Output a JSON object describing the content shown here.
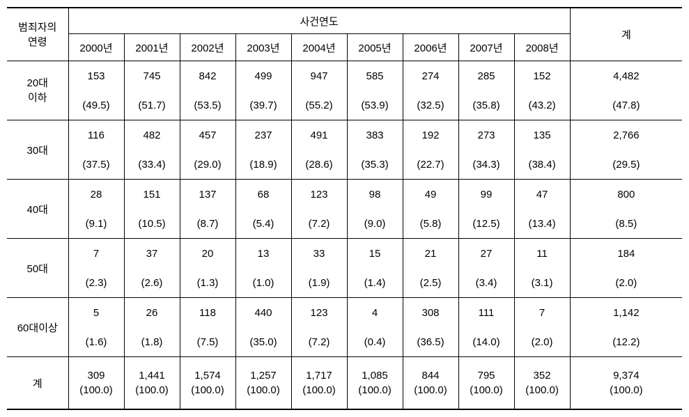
{
  "table": {
    "type": "table",
    "background_color": "#ffffff",
    "border_color": "#000000",
    "font_size": 15,
    "header": {
      "row_label": "범죄자의\n연령",
      "group_label": "사건연도",
      "total_label": "계",
      "years": [
        "2000년",
        "2001년",
        "2002년",
        "2003년",
        "2004년",
        "2005년",
        "2006년",
        "2007년",
        "2008년"
      ]
    },
    "rows": [
      {
        "label": "20대\n이하",
        "values": [
          "153",
          "745",
          "842",
          "499",
          "947",
          "585",
          "274",
          "285",
          "152"
        ],
        "total": "4,482",
        "pcts": [
          "(49.5)",
          "(51.7)",
          "(53.5)",
          "(39.7)",
          "(55.2)",
          "(53.9)",
          "(32.5)",
          "(35.8)",
          "(43.2)"
        ],
        "total_pct": "(47.8)"
      },
      {
        "label": "30대",
        "values": [
          "116",
          "482",
          "457",
          "237",
          "491",
          "383",
          "192",
          "273",
          "135"
        ],
        "total": "2,766",
        "pcts": [
          "(37.5)",
          "(33.4)",
          "(29.0)",
          "(18.9)",
          "(28.6)",
          "(35.3)",
          "(22.7)",
          "(34.3)",
          "(38.4)"
        ],
        "total_pct": "(29.5)"
      },
      {
        "label": "40대",
        "values": [
          "28",
          "151",
          "137",
          "68",
          "123",
          "98",
          "49",
          "99",
          "47"
        ],
        "total": "800",
        "pcts": [
          "(9.1)",
          "(10.5)",
          "(8.7)",
          "(5.4)",
          "(7.2)",
          "(9.0)",
          "(5.8)",
          "(12.5)",
          "(13.4)"
        ],
        "total_pct": "(8.5)"
      },
      {
        "label": "50대",
        "values": [
          "7",
          "37",
          "20",
          "13",
          "33",
          "15",
          "21",
          "27",
          "11"
        ],
        "total": "184",
        "pcts": [
          "(2.3)",
          "(2.6)",
          "(1.3)",
          "(1.0)",
          "(1.9)",
          "(1.4)",
          "(2.5)",
          "(3.4)",
          "(3.1)"
        ],
        "total_pct": "(2.0)"
      },
      {
        "label": "60대이상",
        "values": [
          "5",
          "26",
          "118",
          "440",
          "123",
          "4",
          "308",
          "111",
          "7"
        ],
        "total": "1,142",
        "pcts": [
          "(1.6)",
          "(1.8)",
          "(7.5)",
          "(35.0)",
          "(7.2)",
          "(0.4)",
          "(36.5)",
          "(14.0)",
          "(2.0)"
        ],
        "total_pct": "(12.2)"
      }
    ],
    "total_row": {
      "label": "계",
      "values": [
        "309",
        "1,441",
        "1,574",
        "1,257",
        "1,717",
        "1,085",
        "844",
        "795",
        "352"
      ],
      "total": "9,374",
      "pcts": [
        "(100.0)",
        "(100.0)",
        "(100.0)",
        "(100.0)",
        "(100.0)",
        "(100.0)",
        "(100.0)",
        "(100.0)",
        "(100.0)"
      ],
      "total_pct": "(100.0)"
    }
  }
}
